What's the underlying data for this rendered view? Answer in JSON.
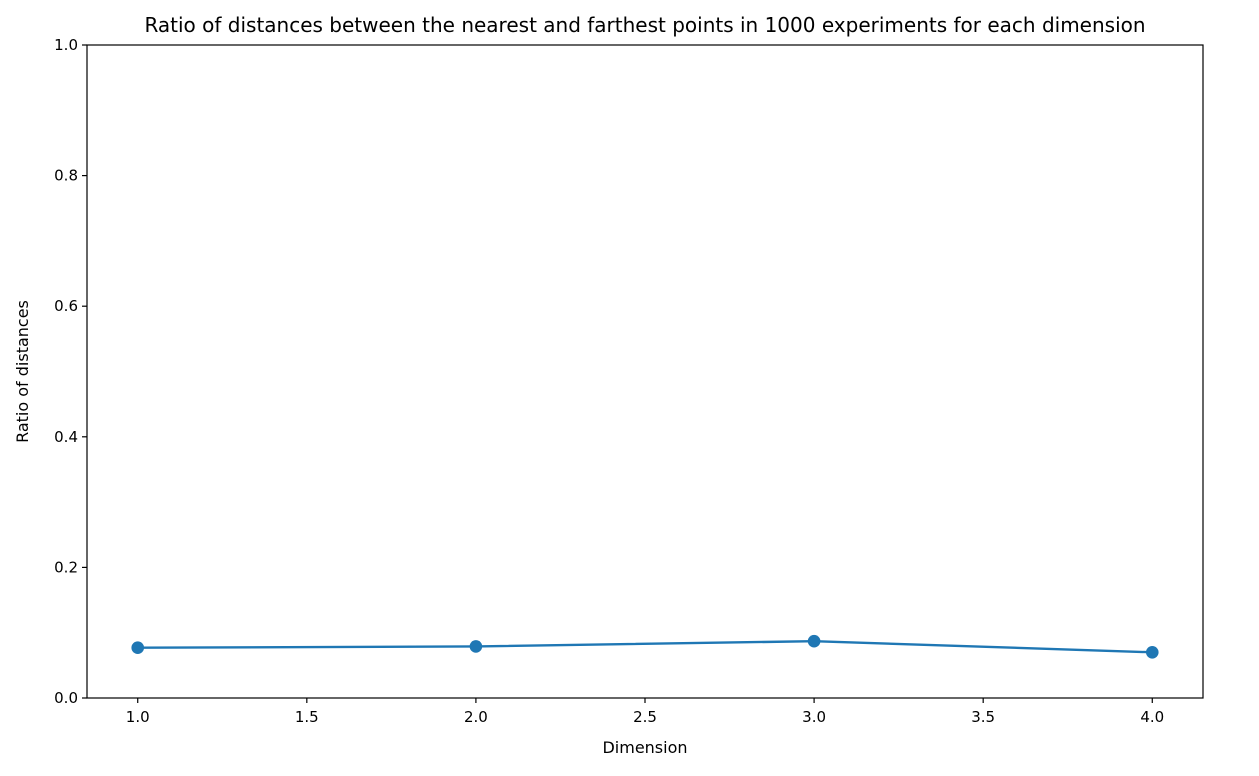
{
  "chart_data": {
    "type": "line",
    "title": "Ratio of distances between the nearest and farthest points in 1000 experiments for each dimension",
    "xlabel": "Dimension",
    "ylabel": "Ratio of distances",
    "xlim": [
      0.85,
      4.15
    ],
    "ylim": [
      0.0,
      1.0
    ],
    "xticks": [
      1.0,
      1.5,
      2.0,
      2.5,
      3.0,
      3.5,
      4.0
    ],
    "xtick_labels": [
      "1.0",
      "1.5",
      "2.0",
      "2.5",
      "3.0",
      "3.5",
      "4.0"
    ],
    "yticks": [
      0.0,
      0.2,
      0.4,
      0.6,
      0.8,
      1.0
    ],
    "ytick_labels": [
      "0.0",
      "0.2",
      "0.4",
      "0.6",
      "0.8",
      "1.0"
    ],
    "grid": false,
    "series": [
      {
        "x": [
          1.0,
          2.0,
          3.0,
          4.0
        ],
        "values": [
          0.077,
          0.079,
          0.087,
          0.07
        ],
        "color": "#1f77b4",
        "marker": "circle"
      }
    ]
  }
}
